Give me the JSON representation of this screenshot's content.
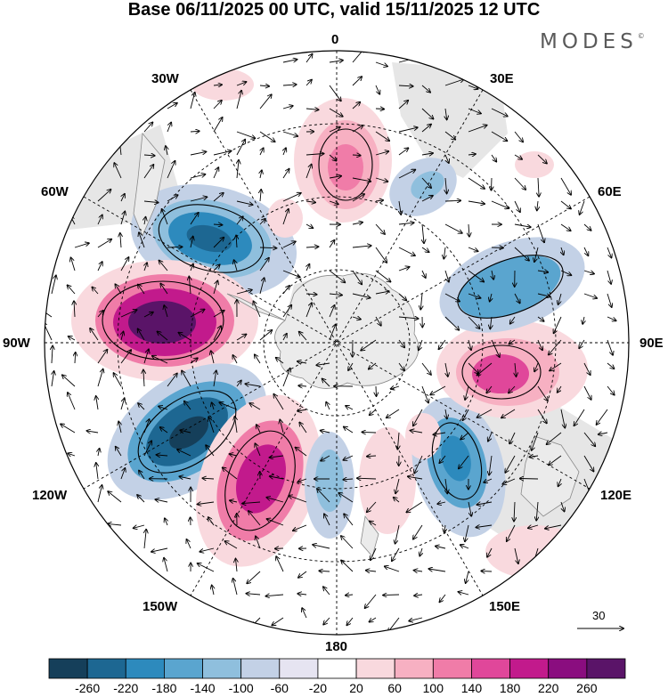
{
  "title": "Base 06/11/2025 00 UTC, valid 15/11/2025 12 UTC",
  "brand": "MODES",
  "brand_mark": "©",
  "lon_labels": {
    "n0": "0",
    "n30e": "30E",
    "n60e": "60E",
    "n90e": "90E",
    "n120e": "120E",
    "n150e": "150E",
    "n180": "180",
    "n150w": "150W",
    "n120w": "120W",
    "n90w": "90W",
    "n60w": "60W",
    "n30w": "30W"
  },
  "vector_scale": {
    "value": "30"
  },
  "colorbar": {
    "labels": [
      "-260",
      "-220",
      "-180",
      "-140",
      "-100",
      "-60",
      "-20",
      "20",
      "60",
      "100",
      "140",
      "180",
      "220",
      "260"
    ],
    "colors": [
      "#153f5a",
      "#1d6792",
      "#2d8abd",
      "#5aa5cf",
      "#8fbfdd",
      "#c3d1e6",
      "#e6e4f1",
      "#ffffff",
      "#f9d9de",
      "#f7b0c2",
      "#f07ca8",
      "#e0479a",
      "#c21a8c",
      "#8a0d7f",
      "#5a1468"
    ]
  }
}
